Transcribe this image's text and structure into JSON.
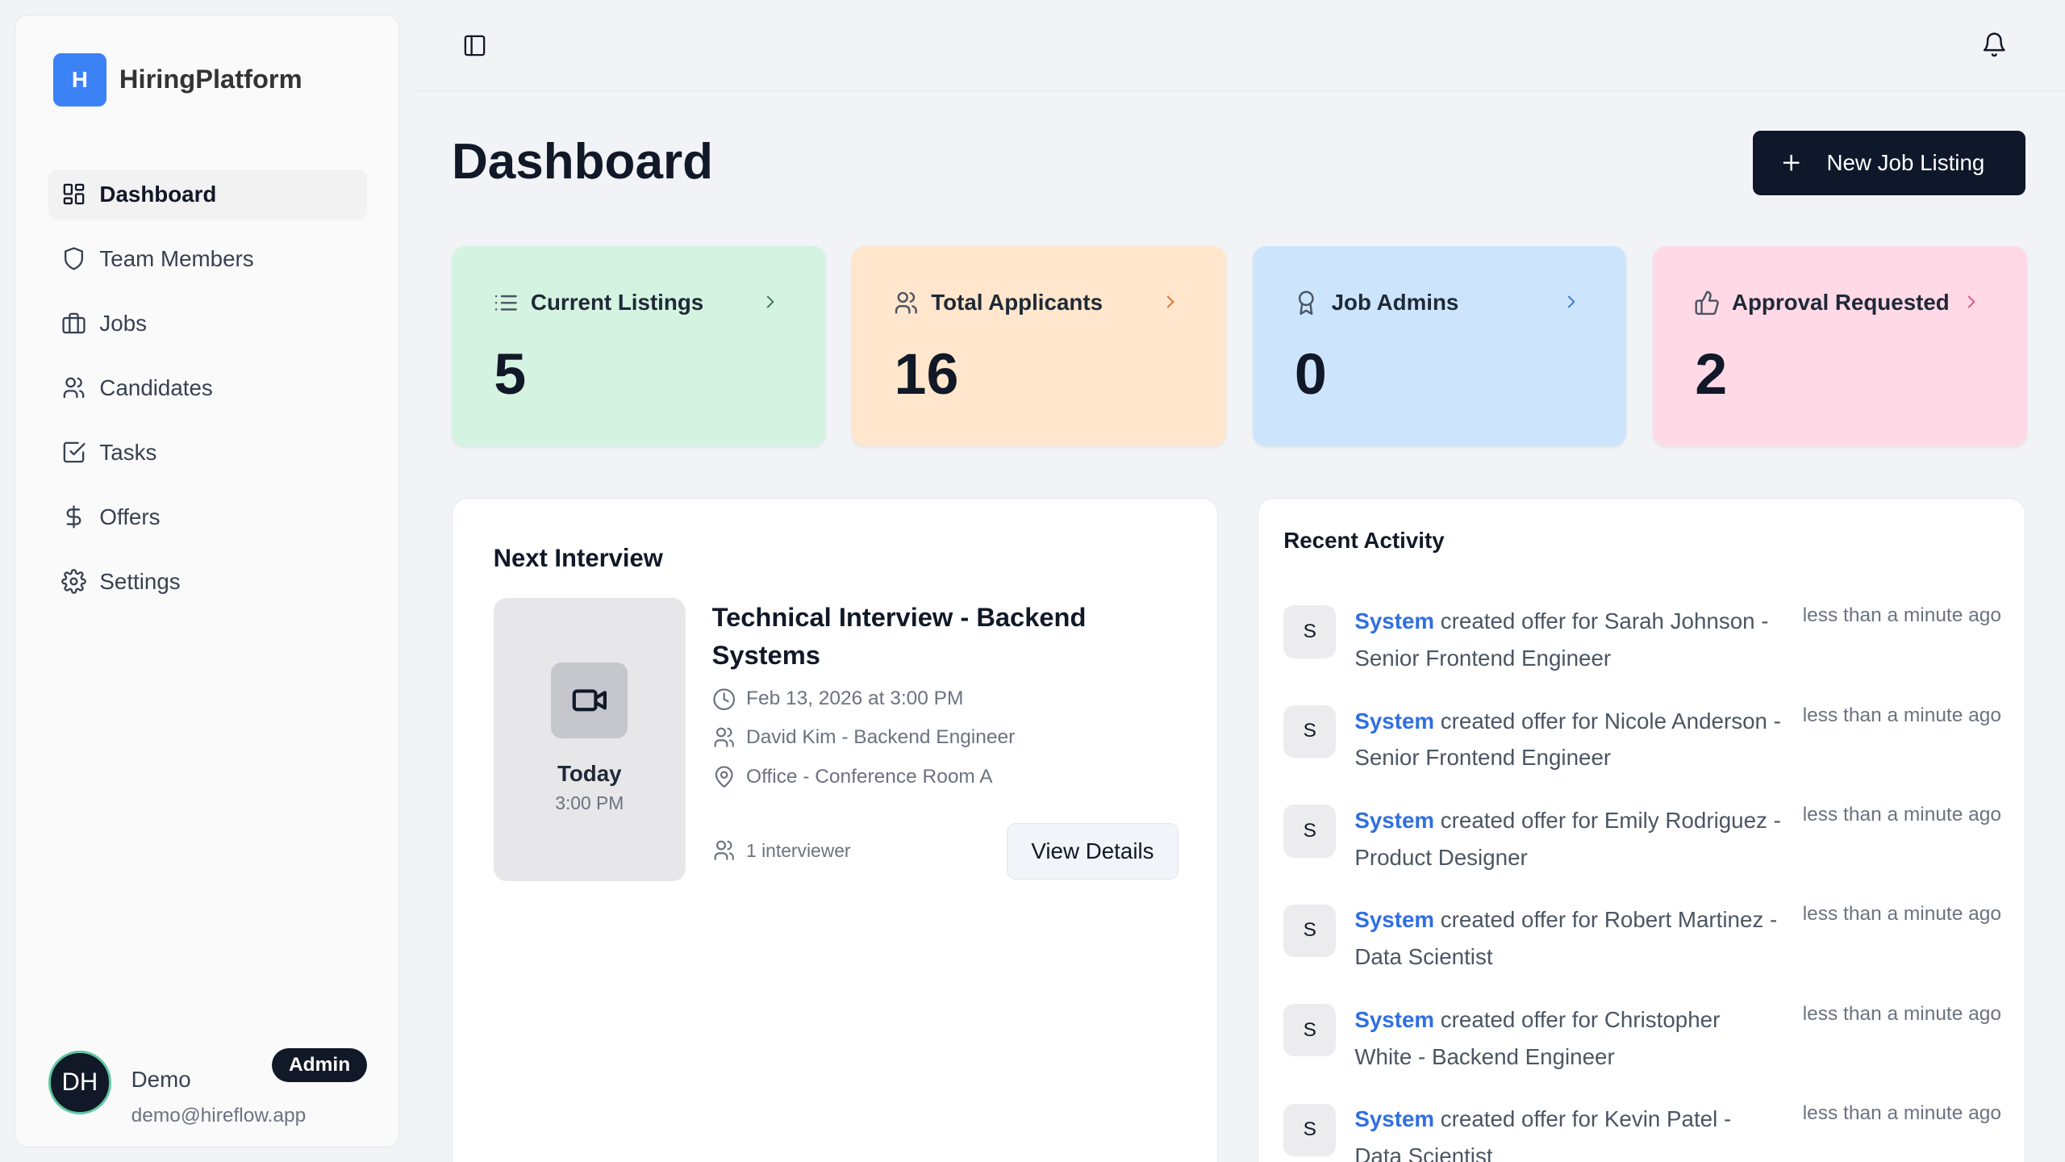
{
  "brand": {
    "logo_letter": "H",
    "name": "HiringPlatform",
    "color": "#3b82f6"
  },
  "sidebar": {
    "items": [
      {
        "label": "Dashboard",
        "icon": "layout-dashboard-icon",
        "active": true
      },
      {
        "label": "Team Members",
        "icon": "shield-icon"
      },
      {
        "label": "Jobs",
        "icon": "briefcase-icon"
      },
      {
        "label": "Candidates",
        "icon": "users-icon"
      },
      {
        "label": "Tasks",
        "icon": "check-square-icon"
      },
      {
        "label": "Offers",
        "icon": "dollar-icon"
      },
      {
        "label": "Settings",
        "icon": "gear-icon"
      }
    ]
  },
  "user": {
    "initials": "DH",
    "name": "Demo",
    "email": "demo@hireflow.app",
    "role": "Admin"
  },
  "header": {
    "title": "Dashboard",
    "new_button": "New Job Listing"
  },
  "stats": [
    {
      "label": "Current Listings",
      "value": "5",
      "bg": "#d4f3e0",
      "accent": "#3f7a55"
    },
    {
      "label": "Total Applicants",
      "value": "16",
      "bg": "#ffe6cc",
      "accent": "#d9772e"
    },
    {
      "label": "Job Admins",
      "value": "0",
      "bg": "#cce5fd",
      "accent": "#3b7bd6"
    },
    {
      "label": "Approval Requested",
      "value": "2",
      "bg": "#ffd9e6",
      "accent": "#d9557f"
    }
  ],
  "next_interview": {
    "heading": "Next Interview",
    "day": "Today",
    "time": "3:00 PM",
    "title": "Technical Interview - Backend Systems",
    "datetime": "Feb 13, 2026 at 3:00 PM",
    "candidate": "David Kim - Backend Engineer",
    "location": "Office - Conference Room A",
    "interviewers": "1 interviewer",
    "button": "View Details"
  },
  "recent_activity": {
    "heading": "Recent Activity",
    "items": [
      {
        "avatar": "S",
        "actor": "System",
        "text": " created offer for Sarah Johnson - Senior Frontend Engineer",
        "time": "less than a minute ago"
      },
      {
        "avatar": "S",
        "actor": "System",
        "text": " created offer for Nicole Anderson - Senior Frontend Engineer",
        "time": "less than a minute ago"
      },
      {
        "avatar": "S",
        "actor": "System",
        "text": " created offer for Emily Rodriguez - Product Designer",
        "time": "less than a minute ago"
      },
      {
        "avatar": "S",
        "actor": "System",
        "text": " created offer for Robert Martinez - Data Scientist",
        "time": "less than a minute ago"
      },
      {
        "avatar": "S",
        "actor": "System",
        "text": " created offer for Christopher White - Backend Engineer",
        "time": "less than a minute ago"
      },
      {
        "avatar": "S",
        "actor": "System",
        "text": " created offer for Kevin Patel - Data Scientist",
        "time": "less than a minute ago"
      }
    ]
  }
}
